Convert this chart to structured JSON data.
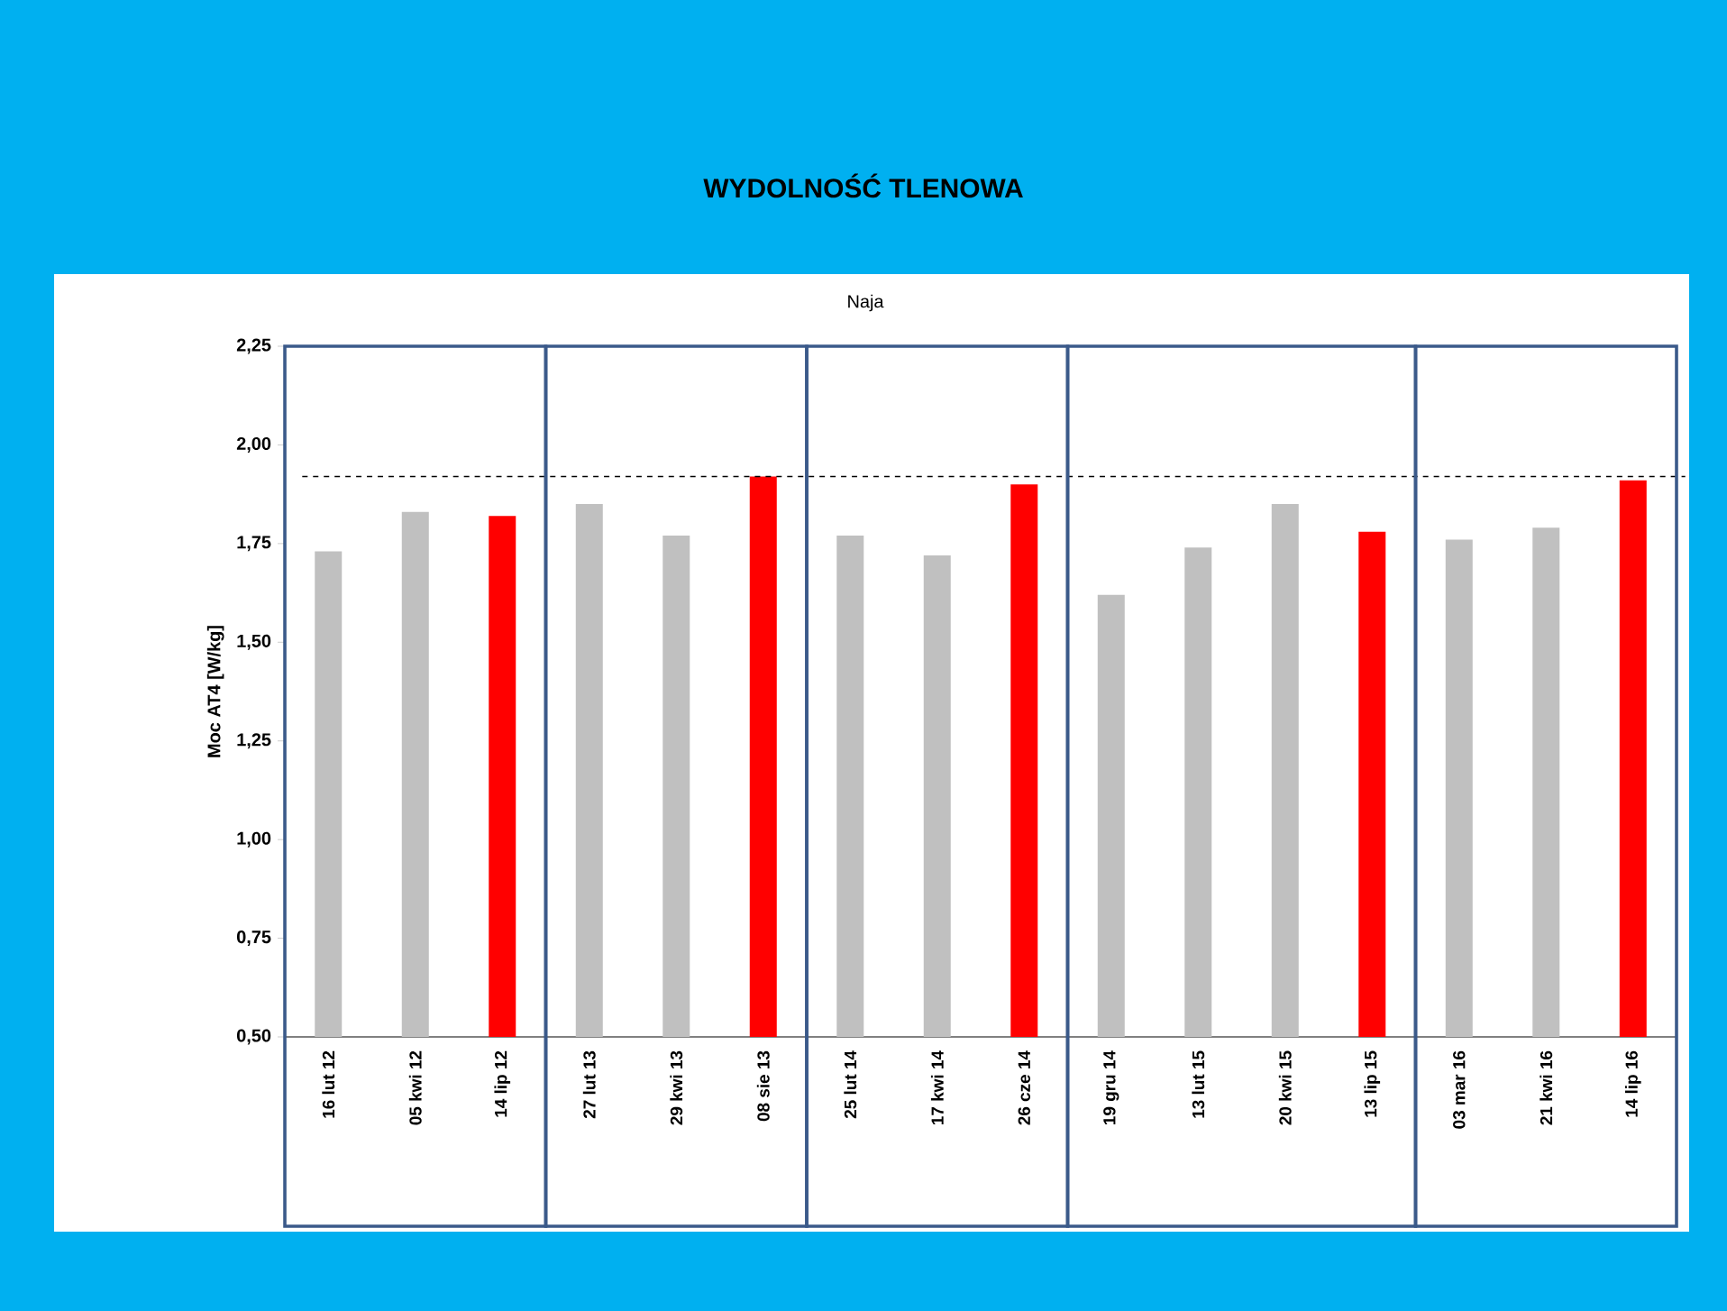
{
  "chart_data": {
    "type": "bar",
    "title": "WYDOLNOŚĆ TLENOWA",
    "subtitle": "Naja",
    "ylabel": "Moc AT4 [W/kg]",
    "categories": [
      "16 lut 12",
      "05 kwi 12",
      "14 lip 12",
      "27 lut 13",
      "29 kwi 13",
      "08 sie 13",
      "25 lut 14",
      "17 kwi 14",
      "26 cze 14",
      "19 gru 14",
      "13 lut 15",
      "20 kwi 15",
      "13 lip 15",
      "03 mar 16",
      "21 kwi 16",
      "14 lip 16"
    ],
    "values": [
      1.73,
      1.83,
      1.82,
      1.85,
      1.77,
      1.92,
      1.77,
      1.72,
      1.9,
      1.62,
      1.74,
      1.85,
      1.78,
      1.76,
      1.79,
      1.91
    ],
    "colors": [
      "#c0c0c0",
      "#c0c0c0",
      "#ff0000",
      "#c0c0c0",
      "#c0c0c0",
      "#ff0000",
      "#c0c0c0",
      "#c0c0c0",
      "#ff0000",
      "#c0c0c0",
      "#c0c0c0",
      "#c0c0c0",
      "#ff0000",
      "#c0c0c0",
      "#c0c0c0",
      "#ff0000"
    ],
    "ylim": [
      0.5,
      2.25
    ],
    "yticks": [
      {
        "value": 0.5,
        "label": "0,50"
      },
      {
        "value": 0.75,
        "label": "0,75"
      },
      {
        "value": 1.0,
        "label": "1,00"
      },
      {
        "value": 1.25,
        "label": "1,25"
      },
      {
        "value": 1.5,
        "label": "1,50"
      },
      {
        "value": 1.75,
        "label": "1,75"
      },
      {
        "value": 2.0,
        "label": "2,00"
      },
      {
        "value": 2.25,
        "label": "2,25"
      }
    ],
    "ref_lines": [
      {
        "axis": "y",
        "value": 1.92,
        "color": "#000000",
        "line_style": "dashed"
      }
    ],
    "grid": false
  }
}
